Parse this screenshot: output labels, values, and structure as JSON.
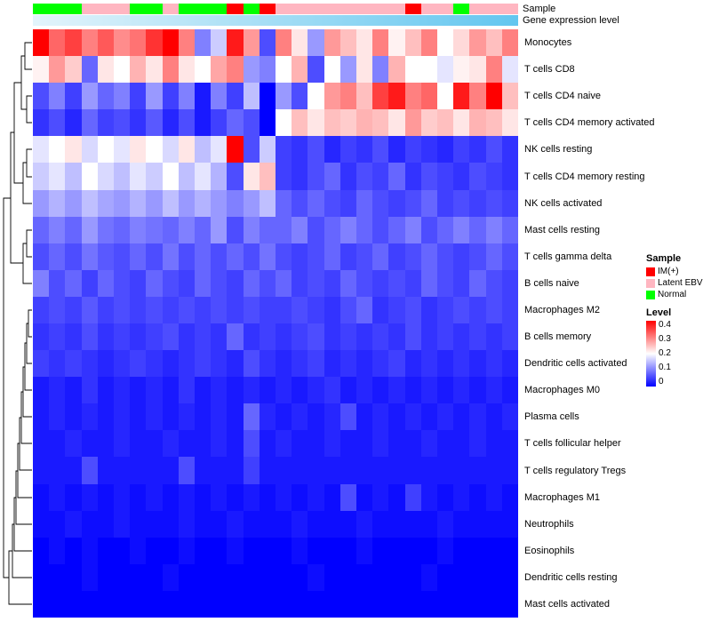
{
  "annotations": {
    "sample_label": "Sample",
    "gene_label": "Gene expression level"
  },
  "legend": {
    "sample": {
      "title": "Sample",
      "items": [
        {
          "label": "IM(+)",
          "color": "#FF0000"
        },
        {
          "label": "Latent EBV",
          "color": "#FFB6C1"
        },
        {
          "label": "Normal",
          "color": "#00FF00"
        }
      ]
    },
    "level": {
      "title": "Level",
      "ticks": [
        "0.4",
        "0.3",
        "0.2",
        "0.1",
        "0"
      ],
      "max_color": "#FF0000",
      "mid_color": "#FFFFFF",
      "min_color": "#0000FF"
    }
  },
  "chart_data": {
    "type": "heatmap",
    "columns": 30,
    "color_scale": {
      "min": 0,
      "max": 0.4,
      "min_color": "#0000FF",
      "mid_color": "#FFFFFF",
      "max_color": "#FF0000"
    },
    "gene_expression_gradient": [
      "#E3F4FB",
      "#63C6EF"
    ],
    "sample_annotation": [
      "Normal",
      "Normal",
      "Normal",
      "Latent EBV",
      "Latent EBV",
      "Latent EBV",
      "Normal",
      "Normal",
      "Latent EBV",
      "Normal",
      "Normal",
      "Normal",
      "IM(+)",
      "Normal",
      "IM(+)",
      "Latent EBV",
      "Latent EBV",
      "Latent EBV",
      "Latent EBV",
      "Latent EBV",
      "Latent EBV",
      "Latent EBV",
      "Latent EBV",
      "IM(+)",
      "Latent EBV",
      "Latent EBV",
      "Normal",
      "Latent EBV",
      "Latent EBV",
      "Latent EBV"
    ],
    "series": [
      {
        "name": "Monocytes",
        "values": [
          0.4,
          0.32,
          0.35,
          0.3,
          0.33,
          0.29,
          0.31,
          0.36,
          0.4,
          0.3,
          0.1,
          0.16,
          0.38,
          0.28,
          0.06,
          0.3,
          0.22,
          0.12,
          0.28,
          0.25,
          0.22,
          0.3,
          0.21,
          0.25,
          0.3,
          0.2,
          0.23,
          0.28,
          0.25,
          0.3
        ]
      },
      {
        "name": "T cells CD8",
        "values": [
          0.21,
          0.28,
          0.24,
          0.08,
          0.22,
          0.2,
          0.26,
          0.22,
          0.3,
          0.22,
          0.2,
          0.27,
          0.3,
          0.12,
          0.1,
          0.2,
          0.26,
          0.06,
          0.2,
          0.12,
          0.22,
          0.1,
          0.26,
          0.2,
          0.2,
          0.18,
          0.21,
          0.22,
          0.3,
          0.18
        ]
      },
      {
        "name": "T cells CD4 naive",
        "values": [
          0.06,
          0.1,
          0.05,
          0.12,
          0.08,
          0.1,
          0.05,
          0.12,
          0.05,
          0.1,
          0.02,
          0.1,
          0.05,
          0.15,
          0.0,
          0.12,
          0.06,
          0.2,
          0.28,
          0.3,
          0.25,
          0.35,
          0.38,
          0.3,
          0.32,
          0.2,
          0.38,
          0.3,
          0.4,
          0.25
        ]
      },
      {
        "name": "T cells CD4 memory activated",
        "values": [
          0.04,
          0.06,
          0.03,
          0.08,
          0.05,
          0.06,
          0.04,
          0.07,
          0.03,
          0.06,
          0.02,
          0.05,
          0.08,
          0.06,
          0.0,
          0.2,
          0.25,
          0.22,
          0.25,
          0.24,
          0.26,
          0.25,
          0.22,
          0.28,
          0.24,
          0.25,
          0.22,
          0.26,
          0.25,
          0.22
        ]
      },
      {
        "name": "NK cells resting",
        "values": [
          0.18,
          0.2,
          0.22,
          0.17,
          0.2,
          0.18,
          0.22,
          0.2,
          0.17,
          0.22,
          0.15,
          0.18,
          0.4,
          0.06,
          0.16,
          0.05,
          0.04,
          0.06,
          0.03,
          0.05,
          0.04,
          0.06,
          0.03,
          0.05,
          0.04,
          0.03,
          0.05,
          0.04,
          0.06,
          0.04
        ]
      },
      {
        "name": "T cells CD4 memory resting",
        "values": [
          0.16,
          0.18,
          0.15,
          0.2,
          0.17,
          0.15,
          0.18,
          0.16,
          0.2,
          0.15,
          0.18,
          0.14,
          0.06,
          0.22,
          0.25,
          0.05,
          0.04,
          0.06,
          0.08,
          0.04,
          0.06,
          0.05,
          0.08,
          0.04,
          0.06,
          0.05,
          0.04,
          0.06,
          0.05,
          0.04
        ]
      },
      {
        "name": "NK cells activated",
        "values": [
          0.12,
          0.14,
          0.12,
          0.15,
          0.13,
          0.12,
          0.14,
          0.12,
          0.15,
          0.12,
          0.14,
          0.12,
          0.1,
          0.12,
          0.15,
          0.08,
          0.06,
          0.08,
          0.06,
          0.05,
          0.08,
          0.06,
          0.05,
          0.06,
          0.08,
          0.05,
          0.06,
          0.05,
          0.06,
          0.05
        ]
      },
      {
        "name": "Mast cells resting",
        "values": [
          0.08,
          0.1,
          0.08,
          0.12,
          0.09,
          0.08,
          0.1,
          0.09,
          0.08,
          0.1,
          0.08,
          0.12,
          0.06,
          0.1,
          0.08,
          0.08,
          0.1,
          0.06,
          0.08,
          0.1,
          0.08,
          0.06,
          0.08,
          0.1,
          0.06,
          0.08,
          0.1,
          0.08,
          0.1,
          0.08
        ]
      },
      {
        "name": "T cells gamma delta",
        "values": [
          0.06,
          0.08,
          0.06,
          0.09,
          0.07,
          0.06,
          0.08,
          0.06,
          0.09,
          0.06,
          0.08,
          0.06,
          0.08,
          0.06,
          0.09,
          0.06,
          0.05,
          0.06,
          0.08,
          0.05,
          0.06,
          0.08,
          0.05,
          0.06,
          0.08,
          0.06,
          0.05,
          0.06,
          0.08,
          0.06
        ]
      },
      {
        "name": "B cells naive",
        "values": [
          0.1,
          0.06,
          0.08,
          0.05,
          0.08,
          0.06,
          0.05,
          0.08,
          0.06,
          0.05,
          0.08,
          0.06,
          0.05,
          0.08,
          0.06,
          0.08,
          0.05,
          0.06,
          0.05,
          0.08,
          0.06,
          0.05,
          0.06,
          0.05,
          0.08,
          0.06,
          0.05,
          0.08,
          0.06,
          0.05
        ]
      },
      {
        "name": "Macrophages M2",
        "values": [
          0.05,
          0.06,
          0.05,
          0.07,
          0.05,
          0.06,
          0.05,
          0.06,
          0.05,
          0.06,
          0.05,
          0.06,
          0.05,
          0.06,
          0.05,
          0.05,
          0.06,
          0.05,
          0.04,
          0.06,
          0.08,
          0.04,
          0.05,
          0.06,
          0.04,
          0.05,
          0.06,
          0.05,
          0.06,
          0.05
        ]
      },
      {
        "name": "B cells memory",
        "values": [
          0.04,
          0.05,
          0.04,
          0.06,
          0.04,
          0.05,
          0.04,
          0.05,
          0.06,
          0.04,
          0.05,
          0.04,
          0.08,
          0.04,
          0.05,
          0.04,
          0.05,
          0.06,
          0.04,
          0.05,
          0.04,
          0.05,
          0.04,
          0.06,
          0.04,
          0.05,
          0.04,
          0.05,
          0.04,
          0.05
        ]
      },
      {
        "name": "Dendritic cells activated",
        "values": [
          0.05,
          0.04,
          0.05,
          0.04,
          0.03,
          0.04,
          0.05,
          0.04,
          0.03,
          0.04,
          0.05,
          0.04,
          0.03,
          0.06,
          0.04,
          0.03,
          0.04,
          0.05,
          0.03,
          0.04,
          0.03,
          0.04,
          0.05,
          0.03,
          0.04,
          0.03,
          0.04,
          0.03,
          0.04,
          0.03
        ]
      },
      {
        "name": "Macrophages M0",
        "values": [
          0.02,
          0.03,
          0.02,
          0.04,
          0.02,
          0.03,
          0.02,
          0.03,
          0.02,
          0.04,
          0.02,
          0.03,
          0.02,
          0.03,
          0.02,
          0.03,
          0.02,
          0.03,
          0.04,
          0.02,
          0.03,
          0.02,
          0.03,
          0.02,
          0.03,
          0.02,
          0.03,
          0.02,
          0.03,
          0.02
        ]
      },
      {
        "name": "Plasma cells",
        "values": [
          0.02,
          0.03,
          0.02,
          0.03,
          0.02,
          0.03,
          0.02,
          0.03,
          0.02,
          0.03,
          0.02,
          0.03,
          0.02,
          0.08,
          0.03,
          0.02,
          0.03,
          0.02,
          0.03,
          0.06,
          0.02,
          0.03,
          0.02,
          0.03,
          0.02,
          0.03,
          0.02,
          0.03,
          0.02,
          0.03
        ]
      },
      {
        "name": "T cells follicular helper",
        "values": [
          0.02,
          0.02,
          0.03,
          0.02,
          0.02,
          0.03,
          0.02,
          0.02,
          0.03,
          0.02,
          0.02,
          0.03,
          0.02,
          0.06,
          0.02,
          0.03,
          0.02,
          0.02,
          0.03,
          0.02,
          0.02,
          0.03,
          0.02,
          0.02,
          0.03,
          0.02,
          0.02,
          0.03,
          0.02,
          0.02
        ]
      },
      {
        "name": "T cells regulatory Tregs",
        "values": [
          0.02,
          0.02,
          0.02,
          0.06,
          0.02,
          0.02,
          0.02,
          0.02,
          0.02,
          0.06,
          0.02,
          0.02,
          0.02,
          0.05,
          0.02,
          0.02,
          0.02,
          0.02,
          0.02,
          0.02,
          0.02,
          0.02,
          0.02,
          0.02,
          0.02,
          0.02,
          0.02,
          0.02,
          0.02,
          0.02
        ]
      },
      {
        "name": "Macrophages M1",
        "values": [
          0.01,
          0.02,
          0.01,
          0.02,
          0.01,
          0.02,
          0.01,
          0.02,
          0.01,
          0.02,
          0.01,
          0.02,
          0.01,
          0.02,
          0.01,
          0.02,
          0.01,
          0.02,
          0.01,
          0.06,
          0.01,
          0.02,
          0.01,
          0.05,
          0.02,
          0.01,
          0.02,
          0.01,
          0.02,
          0.01
        ]
      },
      {
        "name": "Neutrophils",
        "values": [
          0.01,
          0.01,
          0.02,
          0.01,
          0.01,
          0.02,
          0.01,
          0.01,
          0.01,
          0.02,
          0.01,
          0.01,
          0.02,
          0.01,
          0.01,
          0.01,
          0.02,
          0.01,
          0.01,
          0.01,
          0.02,
          0.01,
          0.01,
          0.01,
          0.01,
          0.02,
          0.01,
          0.01,
          0.01,
          0.01
        ]
      },
      {
        "name": "Eosinophils",
        "values": [
          0.0,
          0.01,
          0.0,
          0.01,
          0.0,
          0.0,
          0.01,
          0.0,
          0.0,
          0.01,
          0.0,
          0.0,
          0.01,
          0.0,
          0.0,
          0.0,
          0.01,
          0.0,
          0.0,
          0.0,
          0.01,
          0.0,
          0.0,
          0.0,
          0.0,
          0.01,
          0.0,
          0.0,
          0.0,
          0.0
        ]
      },
      {
        "name": "Dendritic cells resting",
        "values": [
          0.0,
          0.0,
          0.0,
          0.01,
          0.0,
          0.0,
          0.0,
          0.0,
          0.01,
          0.0,
          0.0,
          0.0,
          0.0,
          0.0,
          0.0,
          0.0,
          0.0,
          0.01,
          0.0,
          0.0,
          0.0,
          0.0,
          0.0,
          0.0,
          0.01,
          0.0,
          0.0,
          0.0,
          0.0,
          0.0
        ]
      },
      {
        "name": "Mast cells activated",
        "values": [
          0.0,
          0.0,
          0.0,
          0.0,
          0.0,
          0.0,
          0.0,
          0.0,
          0.0,
          0.0,
          0.0,
          0.0,
          0.0,
          0.0,
          0.0,
          0.0,
          0.0,
          0.0,
          0.0,
          0.0,
          0.0,
          0.0,
          0.0,
          0.0,
          0.0,
          0.0,
          0.0,
          0.0,
          0.0,
          0.0
        ]
      }
    ]
  }
}
